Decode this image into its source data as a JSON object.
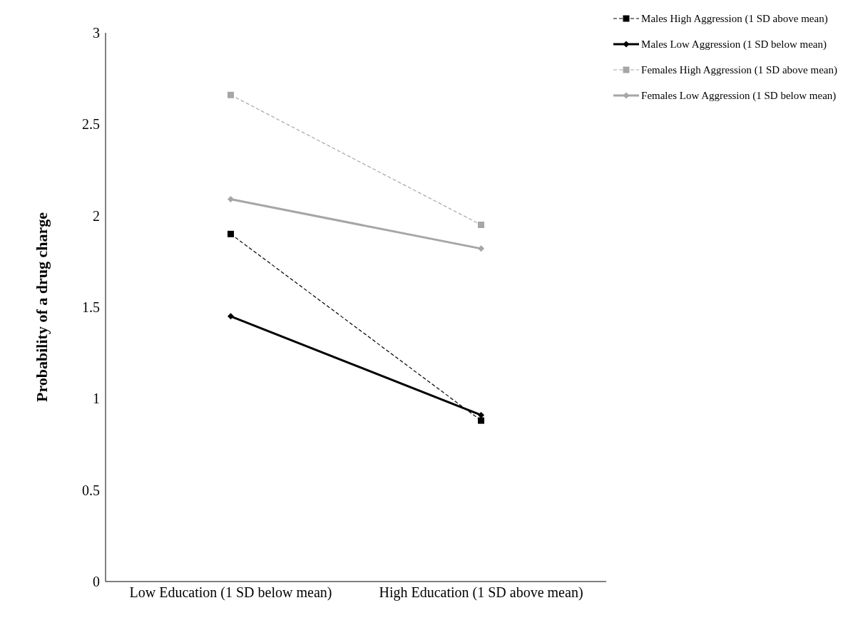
{
  "chart_data": {
    "type": "line",
    "ylabel": "Probability of a drug charge",
    "categories": [
      "Low Education (1 SD below mean)",
      "High Education (1 SD above mean)"
    ],
    "series": [
      {
        "name": "Males High Aggression (1 SD above mean)",
        "color": "#000000",
        "values": [
          1.9,
          0.88
        ],
        "marker": "square",
        "line_style": "dashed"
      },
      {
        "name": "Males Low Aggression (1 SD below mean)",
        "color": "#000000",
        "values": [
          1.45,
          0.91
        ],
        "marker": "diamond",
        "line_style": "solid"
      },
      {
        "name": "Females High Aggression (1 SD above mean)",
        "color": "#a6a6a6",
        "values": [
          2.66,
          1.95
        ],
        "marker": "square",
        "line_style": "dashed"
      },
      {
        "name": "Females Low Aggression (1 SD below mean)",
        "color": "#a6a6a6",
        "values": [
          2.09,
          1.82
        ],
        "marker": "diamond",
        "line_style": "solid"
      }
    ],
    "ylim": [
      0,
      3
    ],
    "yticks": [
      0,
      0.5,
      1,
      1.5,
      2,
      2.5,
      3
    ],
    "grid": false,
    "legend": "top right"
  }
}
